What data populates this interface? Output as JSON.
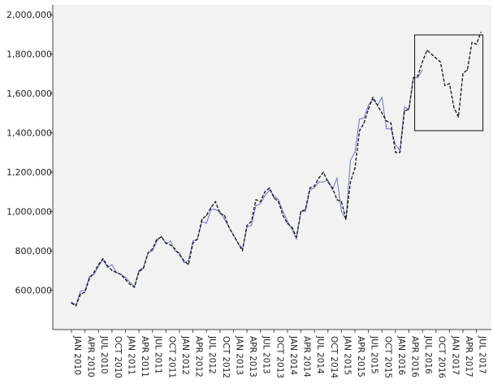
{
  "chart_data": {
    "type": "line",
    "title": "",
    "xlabel": "",
    "ylabel": "",
    "ylim": [
      400000,
      2050000
    ],
    "y_ticks": [
      600000,
      800000,
      1000000,
      1200000,
      1400000,
      1600000,
      1800000,
      2000000
    ],
    "y_tick_labels": [
      "600,000",
      "800,000",
      "1,000,000",
      "1,200,000",
      "1,400,000",
      "1,600,000",
      "1,800,000",
      "2,000,000"
    ],
    "x_start": "JAN 2010",
    "x_tick_labels": [
      "JAN 2010",
      "APR 2010",
      "JUL 2010",
      "OCT 2010",
      "JAN 2011",
      "APR 2011",
      "JUL 2011",
      "OCT 2011",
      "JAN 2012",
      "APR 2012",
      "JUL 2012",
      "OCT 2012",
      "JAN 2013",
      "APR 2013",
      "JUL 2013",
      "OCT 2013",
      "JAN 2014",
      "APR 2014",
      "JUL 2014",
      "OCT 2014",
      "JAN 2015",
      "APR 2015",
      "JUL 2015",
      "OCT 2015",
      "JAN 2016",
      "APR 2016",
      "JUL 2016",
      "OCT 2016",
      "JAN 2017",
      "APR 2017",
      "JUL 2017"
    ],
    "grid": false,
    "plot_background": "#f2f2f2",
    "highlight_box": {
      "from": "JUN 2016",
      "to": "JUL 2017"
    },
    "series": [
      {
        "style": "solid",
        "color": "#6b74b8",
        "values": [
          540000,
          525000,
          595000,
          600000,
          670000,
          680000,
          720000,
          755000,
          715000,
          730000,
          690000,
          680000,
          665000,
          640000,
          620000,
          700000,
          715000,
          790000,
          800000,
          850000,
          875000,
          835000,
          850000,
          800000,
          790000,
          740000,
          750000,
          850000,
          860000,
          950000,
          940000,
          1010000,
          1010000,
          1000000,
          960000,
          920000,
          880000,
          840000,
          810000,
          920000,
          930000,
          1030000,
          1040000,
          1080000,
          1110000,
          1080000,
          1060000,
          1000000,
          950000,
          910000,
          860000,
          1000000,
          1000000,
          1110000,
          1120000,
          1150000,
          1150000,
          1160000,
          1110000,
          1170000,
          1000000,
          960000,
          1260000,
          1300000,
          1470000,
          1475000,
          1540000,
          1570000,
          1540000,
          1580000,
          1420000,
          1420000,
          1340000,
          1310000,
          1530000,
          1520000,
          1680000,
          1680000,
          1720000
        ],
        "x_start_offset": 0
      },
      {
        "style": "dashed",
        "color": "#111111",
        "values": [
          535000,
          520000,
          580000,
          590000,
          660000,
          690000,
          730000,
          760000,
          725000,
          700000,
          690000,
          680000,
          655000,
          630000,
          615000,
          695000,
          710000,
          790000,
          810000,
          860000,
          870000,
          840000,
          830000,
          810000,
          780000,
          750000,
          730000,
          840000,
          860000,
          960000,
          980000,
          1020000,
          1050000,
          990000,
          980000,
          920000,
          880000,
          840000,
          800000,
          930000,
          950000,
          1060000,
          1050000,
          1100000,
          1120000,
          1070000,
          1050000,
          980000,
          940000,
          920000,
          870000,
          1000000,
          1010000,
          1120000,
          1130000,
          1170000,
          1200000,
          1150000,
          1120000,
          1060000,
          1050000,
          960000,
          1150000,
          1220000,
          1410000,
          1450000,
          1520000,
          1580000,
          1540000,
          1500000,
          1460000,
          1450000,
          1300000,
          1300000,
          1510000,
          1520000,
          1680000,
          1690000,
          1760000,
          1820000,
          1800000,
          1780000,
          1760000,
          1640000,
          1650000,
          1530000,
          1480000,
          1700000,
          1720000,
          1860000,
          1850000,
          1910000
        ],
        "x_start_offset": 0
      }
    ]
  }
}
